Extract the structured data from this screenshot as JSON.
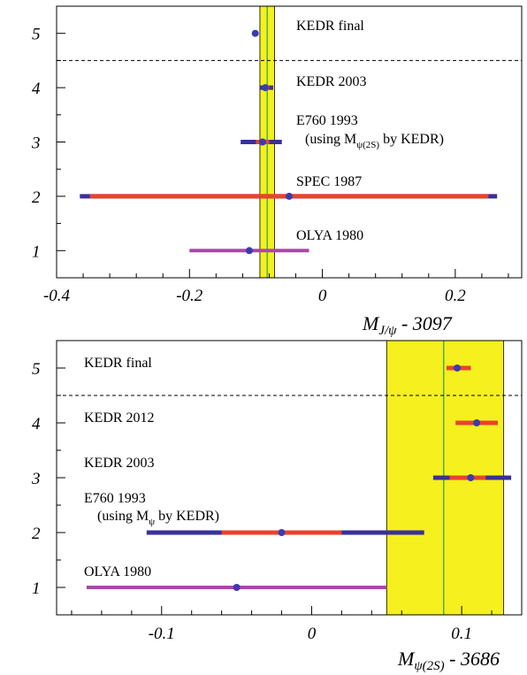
{
  "chart_data": [
    {
      "type": "scatter",
      "xlabel": {
        "main": "M",
        "sub": "J/ψ",
        "tail": " - 3097"
      },
      "xlim": [
        -0.4,
        0.3
      ],
      "ylim": [
        0.5,
        5.5
      ],
      "xticks": [
        -0.4,
        -0.2,
        0,
        0.2
      ],
      "xtick_labels": [
        "-0.4",
        "-0.2",
        "0",
        "0.2"
      ],
      "yticks": [
        1,
        2,
        3,
        4,
        5
      ],
      "ytick_labels": [
        "1",
        "2",
        "3",
        "4",
        "5"
      ],
      "separator_y": 4.5,
      "band": {
        "x0": -0.094,
        "x1": -0.072,
        "color": "#f5f01e"
      },
      "band_line": -0.083,
      "measurements": [
        {
          "y": 5,
          "value": -0.101,
          "stat": [
            -0.104,
            -0.098
          ],
          "total": [
            -0.105,
            -0.097
          ],
          "label": "KEDR final"
        },
        {
          "y": 4,
          "value": -0.086,
          "stat": [
            -0.09,
            -0.08
          ],
          "total": [
            -0.094,
            -0.074
          ],
          "label": "KEDR 2003"
        },
        {
          "y": 3,
          "value": -0.09,
          "stat": [
            -0.1,
            -0.08
          ],
          "total": [
            -0.123,
            -0.061
          ],
          "label": "E760 1993",
          "label2": {
            "pre": "(using M",
            "sub": "ψ(2S)",
            "post": " by KEDR)"
          }
        },
        {
          "y": 2,
          "value": -0.05,
          "stat": [
            -0.35,
            0.25
          ],
          "total": [
            -0.365,
            0.263
          ],
          "label": "SPEC 1987"
        },
        {
          "y": 1,
          "value": -0.11,
          "stat": [
            -0.2,
            -0.02
          ],
          "total": [
            -0.2,
            -0.02
          ],
          "label": "OLYA 1980",
          "single": true
        }
      ]
    },
    {
      "type": "scatter",
      "xlabel": {
        "main": "M",
        "sub": "ψ(2S)",
        "tail": " - 3686"
      },
      "xlim": [
        -0.17,
        0.14
      ],
      "ylim": [
        0.5,
        5.5
      ],
      "xticks": [
        -0.1,
        0,
        0.1
      ],
      "xtick_labels": [
        "-0.1",
        "0",
        "0.1"
      ],
      "yticks": [
        1,
        2,
        3,
        4,
        5
      ],
      "ytick_labels": [
        "1",
        "2",
        "3",
        "4",
        "5"
      ],
      "separator_y": 4.5,
      "band": {
        "x0": 0.05,
        "x1": 0.128,
        "color": "#f5f01e"
      },
      "band_line": 0.088,
      "measurements": [
        {
          "y": 5,
          "value": 0.097,
          "stat": [
            0.09,
            0.106
          ],
          "total": [
            0.09,
            0.106
          ],
          "label": "KEDR final"
        },
        {
          "y": 4,
          "value": 0.11,
          "stat": [
            0.096,
            0.124
          ],
          "total": [
            0.096,
            0.124
          ],
          "label": "KEDR 2012"
        },
        {
          "y": 3,
          "value": 0.106,
          "stat": [
            0.092,
            0.116
          ],
          "total": [
            0.081,
            0.133
          ],
          "label": "KEDR 2003"
        },
        {
          "y": 2,
          "value": -0.02,
          "stat": [
            -0.06,
            0.02
          ],
          "total": [
            -0.11,
            0.075
          ],
          "label": "E760  1993",
          "label2": {
            "pre": "(using M",
            "sub": "ψ",
            "post": " by KEDR)"
          }
        },
        {
          "y": 1,
          "value": -0.05,
          "stat": [
            -0.15,
            0.05
          ],
          "total": [
            -0.15,
            0.05
          ],
          "label": "OLYA 1980",
          "single": true
        }
      ]
    }
  ],
  "colors": {
    "stat": "#e8432c",
    "total": "#3a2f9b",
    "single": "#a848a8",
    "point": "#3b3bb0",
    "band_line": "#4caf50",
    "separator": "#000000"
  }
}
